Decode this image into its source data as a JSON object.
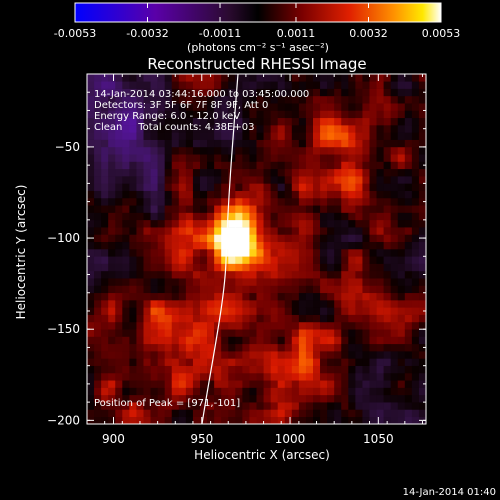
{
  "colorbar": {
    "ticks": [
      "-0.0053",
      "-0.0032",
      "-0.0011",
      "0.0011",
      "0.0032",
      "0.0053"
    ],
    "units": "(photons cm⁻² s⁻¹ asec⁻²)"
  },
  "chart_data": {
    "type": "heatmap",
    "title": "Reconstructed RHESSI Image",
    "xlabel": "Heliocentric X (arcsec)",
    "ylabel": "Heliocentric Y (arcsec)",
    "xlim": [
      885,
      1077
    ],
    "ylim": [
      -202,
      -10
    ],
    "x_ticks": [
      900,
      950,
      1000,
      1050
    ],
    "y_ticks": [
      -50,
      -100,
      -150,
      -200
    ],
    "colorbar_range": [
      -0.0053,
      0.0053
    ],
    "colormap": [
      "#0000ff",
      "#4a0099",
      "#2a0f3a",
      "#000000",
      "#5a0000",
      "#cc1100",
      "#ff8000",
      "#ffe000",
      "#ffffff"
    ],
    "annotations": [
      "14-Jan-2014 03:44:16.000 to 03:45:00.000",
      "Detectors: 3F 5F 6F 7F 8F 9F, Att 0",
      "Energy Range: 6.0 - 12.0 keV",
      "Clean     Total counts: 4.38E+03"
    ],
    "peak_label": "Position of Peak = [971,-101]",
    "peak": [
      971,
      -101
    ],
    "timestamp": "14-Jan-2014 01:40"
  }
}
